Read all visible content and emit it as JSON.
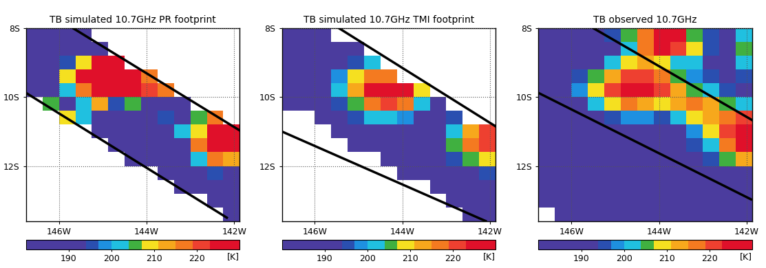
{
  "chart_data": [
    {
      "type": "heatmap",
      "title": "TB simulated 10.7GHz PR footprint",
      "x_edges": [
        -146.75,
        -146.375,
        -146.0,
        -145.625,
        -145.25,
        -144.875,
        -144.5,
        -144.125,
        -143.75,
        -143.375,
        -143.0,
        -142.625,
        -142.25,
        -141.875
      ],
      "y_edges": [
        -8.0,
        -8.4,
        -8.8,
        -9.2,
        -9.6,
        -10.0,
        -10.4,
        -10.8,
        -11.2,
        -11.6,
        -12.0,
        -12.4,
        -12.8,
        -13.2,
        -13.6
      ],
      "values": [
        [
          188,
          188,
          188,
          188,
          null,
          null,
          null,
          null,
          null,
          null,
          null,
          null,
          null
        ],
        [
          188,
          188,
          188,
          188,
          188,
          null,
          null,
          null,
          null,
          null,
          null,
          null,
          null
        ],
        [
          188,
          188,
          195,
          210,
          228,
          226,
          null,
          null,
          null,
          null,
          null,
          null,
          null
        ],
        [
          188,
          188,
          210,
          226,
          228,
          227,
          224,
          215,
          null,
          null,
          null,
          null,
          null
        ],
        [
          188,
          190,
          200,
          215,
          226,
          228,
          224,
          222,
          218,
          null,
          null,
          null,
          null
        ],
        [
          null,
          205,
          188,
          200,
          212,
          195,
          205,
          190,
          188,
          188,
          null,
          null,
          null
        ],
        [
          null,
          null,
          210,
          200,
          188,
          188,
          188,
          188,
          195,
          188,
          205,
          215,
          null
        ],
        [
          null,
          null,
          null,
          null,
          188,
          188,
          188,
          188,
          188,
          200,
          210,
          226,
          228
        ],
        [
          null,
          null,
          null,
          null,
          null,
          188,
          188,
          188,
          188,
          188,
          215,
          225,
          224
        ],
        [
          null,
          null,
          null,
          null,
          null,
          null,
          188,
          188,
          188,
          188,
          200,
          218,
          212
        ],
        [
          null,
          null,
          null,
          null,
          null,
          null,
          null,
          null,
          188,
          188,
          188,
          195,
          188
        ],
        [
          null,
          null,
          null,
          null,
          null,
          null,
          null,
          null,
          null,
          188,
          188,
          188,
          188
        ],
        [
          null,
          null,
          null,
          null,
          null,
          null,
          null,
          null,
          null,
          null,
          null,
          188,
          188
        ],
        [
          null,
          null,
          null,
          null,
          null,
          null,
          null,
          null,
          null,
          null,
          null,
          null,
          188
        ]
      ],
      "swath_lines": [
        [
          [
            -145.68,
            -8.0
          ],
          [
            -141.875,
            -10.97
          ]
        ],
        [
          [
            -146.75,
            -9.88
          ],
          [
            -142.17,
            -13.5
          ]
        ]
      ],
      "xlim": [
        -146.75,
        -141.875
      ],
      "ylim": [
        -13.6,
        -8.0
      ],
      "xticks": [
        {
          "value": -146,
          "label": "146W"
        },
        {
          "value": -144,
          "label": "144W"
        },
        {
          "value": -142,
          "label": "142W"
        }
      ],
      "yticks": [
        {
          "value": -8,
          "label": "8S"
        },
        {
          "value": -10,
          "label": "10S"
        },
        {
          "value": -12,
          "label": "12S"
        }
      ],
      "grid": true,
      "colorbar": {
        "boundaries": [
          180,
          194,
          197,
          200,
          204,
          207,
          211,
          215,
          219,
          223,
          230
        ],
        "colors": [
          "#4b3c9e",
          "#2a4fb0",
          "#1e90e0",
          "#20c0e0",
          "#40b040",
          "#f5e020",
          "#f7a81c",
          "#f47a20",
          "#ee4030",
          "#e0102a"
        ],
        "ticks": [
          190,
          200,
          210,
          220
        ],
        "label": "[K]"
      }
    },
    {
      "type": "heatmap",
      "title": "TB simulated 10.7GHz TMI footprint",
      "x_edges": [
        -146.75,
        -146.375,
        -146.0,
        -145.625,
        -145.25,
        -144.875,
        -144.5,
        -144.125,
        -143.75,
        -143.375,
        -143.0,
        -142.625,
        -142.25,
        -141.875
      ],
      "y_edges": [
        -8.0,
        -8.4,
        -8.8,
        -9.2,
        -9.6,
        -10.0,
        -10.4,
        -10.8,
        -11.2,
        -11.6,
        -12.0,
        -12.4,
        -12.8,
        -13.2,
        -13.6
      ],
      "values": [
        [
          188,
          188,
          188,
          null,
          null,
          null,
          null,
          null,
          null,
          null,
          null,
          null,
          null
        ],
        [
          188,
          188,
          188,
          188,
          188,
          null,
          null,
          null,
          null,
          null,
          null,
          null,
          null
        ],
        [
          188,
          188,
          188,
          190,
          195,
          200,
          null,
          null,
          null,
          null,
          null,
          null,
          null
        ],
        [
          188,
          188,
          190,
          198,
          208,
          215,
          218,
          null,
          null,
          null,
          null,
          null,
          null
        ],
        [
          188,
          188,
          192,
          200,
          212,
          224,
          228,
          226,
          210,
          null,
          null,
          null,
          null
        ],
        [
          188,
          188,
          190,
          196,
          205,
          215,
          220,
          215,
          200,
          192,
          null,
          null,
          null
        ],
        [
          null,
          null,
          188,
          190,
          195,
          200,
          202,
          198,
          192,
          190,
          195,
          null,
          null
        ],
        [
          null,
          null,
          null,
          188,
          188,
          188,
          188,
          188,
          188,
          190,
          200,
          212,
          222
        ],
        [
          null,
          null,
          null,
          null,
          188,
          188,
          188,
          188,
          188,
          192,
          205,
          218,
          220
        ],
        [
          null,
          null,
          null,
          null,
          null,
          null,
          188,
          188,
          188,
          188,
          195,
          205,
          208
        ],
        [
          null,
          null,
          null,
          null,
          null,
          null,
          null,
          188,
          188,
          188,
          188,
          192,
          195
        ],
        [
          null,
          null,
          null,
          null,
          null,
          null,
          null,
          null,
          null,
          188,
          188,
          188,
          188
        ],
        [
          null,
          null,
          null,
          null,
          null,
          null,
          null,
          null,
          null,
          null,
          188,
          188,
          188
        ],
        [
          null,
          null,
          null,
          null,
          null,
          null,
          null,
          null,
          null,
          null,
          null,
          188,
          188
        ]
      ],
      "swath_lines": [
        [
          [
            -145.45,
            -8.0
          ],
          [
            -141.875,
            -10.85
          ]
        ],
        [
          [
            -146.75,
            -11.0
          ],
          [
            -142.1,
            -13.6
          ]
        ]
      ],
      "xlim": [
        -146.75,
        -141.875
      ],
      "ylim": [
        -13.6,
        -8.0
      ],
      "xticks": [
        {
          "value": -146,
          "label": "146W"
        },
        {
          "value": -144,
          "label": "144W"
        },
        {
          "value": -142,
          "label": "142W"
        }
      ],
      "yticks": [
        {
          "value": -8,
          "label": "8S"
        },
        {
          "value": -10,
          "label": "10S"
        },
        {
          "value": -12,
          "label": "12S"
        }
      ],
      "grid": true,
      "colorbar": {
        "boundaries": [
          180,
          194,
          197,
          200,
          204,
          207,
          211,
          215,
          219,
          223,
          230
        ],
        "colors": [
          "#4b3c9e",
          "#2a4fb0",
          "#1e90e0",
          "#20c0e0",
          "#40b040",
          "#f5e020",
          "#f7a81c",
          "#f47a20",
          "#ee4030",
          "#e0102a"
        ],
        "ticks": [
          190,
          200,
          210,
          220
        ],
        "label": "[K]"
      }
    },
    {
      "type": "heatmap",
      "title": "TB observed 10.7GHz",
      "x_edges": [
        -146.75,
        -146.375,
        -146.0,
        -145.625,
        -145.25,
        -144.875,
        -144.5,
        -144.125,
        -143.75,
        -143.375,
        -143.0,
        -142.625,
        -142.25,
        -141.875
      ],
      "y_edges": [
        -8.0,
        -8.4,
        -8.8,
        -9.2,
        -9.6,
        -10.0,
        -10.4,
        -10.8,
        -11.2,
        -11.6,
        -12.0,
        -12.4,
        -12.8,
        -13.2,
        -13.6
      ],
      "values": [
        [
          188,
          188,
          188,
          188,
          195,
          205,
          218,
          226,
          224,
          205,
          195,
          188,
          200
        ],
        [
          188,
          188,
          188,
          188,
          192,
          200,
          215,
          228,
          222,
          210,
          195,
          190,
          205
        ],
        [
          188,
          188,
          188,
          192,
          200,
          208,
          212,
          208,
          200,
          200,
          192,
          190,
          200
        ],
        [
          188,
          188,
          195,
          205,
          212,
          220,
          222,
          215,
          205,
          198,
          195,
          192,
          195
        ],
        [
          188,
          188,
          198,
          210,
          222,
          228,
          226,
          220,
          212,
          205,
          200,
          195,
          192
        ],
        [
          188,
          188,
          192,
          200,
          210,
          215,
          214,
          210,
          212,
          215,
          212,
          205,
          200
        ],
        [
          188,
          188,
          188,
          190,
          195,
          198,
          198,
          195,
          200,
          208,
          212,
          218,
          222
        ],
        [
          188,
          188,
          188,
          188,
          188,
          190,
          190,
          188,
          192,
          198,
          208,
          222,
          228
        ],
        [
          188,
          188,
          188,
          188,
          188,
          188,
          188,
          188,
          188,
          195,
          202,
          215,
          226
        ],
        [
          188,
          188,
          188,
          188,
          188,
          188,
          188,
          188,
          188,
          188,
          195,
          205,
          212
        ],
        [
          188,
          188,
          188,
          188,
          188,
          188,
          188,
          188,
          188,
          188,
          188,
          188,
          188
        ],
        [
          188,
          188,
          188,
          188,
          188,
          188,
          188,
          188,
          188,
          188,
          188,
          188,
          188
        ],
        [
          188,
          188,
          188,
          188,
          188,
          188,
          188,
          188,
          188,
          188,
          188,
          188,
          188
        ],
        [
          null,
          188,
          188,
          188,
          188,
          188,
          188,
          188,
          188,
          188,
          188,
          188,
          188
        ]
      ],
      "swath_lines": [
        [
          [
            -145.5,
            -8.0
          ],
          [
            -141.875,
            -10.67
          ]
        ],
        [
          [
            -146.75,
            -9.88
          ],
          [
            -141.9,
            -12.97
          ]
        ]
      ],
      "xlim": [
        -146.75,
        -141.875
      ],
      "ylim": [
        -13.6,
        -8.0
      ],
      "xticks": [
        {
          "value": -146,
          "label": "146W"
        },
        {
          "value": -144,
          "label": "144W"
        },
        {
          "value": -142,
          "label": "142W"
        }
      ],
      "yticks": [
        {
          "value": -8,
          "label": "8S"
        },
        {
          "value": -10,
          "label": "10S"
        },
        {
          "value": -12,
          "label": "12S"
        }
      ],
      "grid": true,
      "colorbar": {
        "boundaries": [
          180,
          194,
          197,
          200,
          204,
          207,
          211,
          215,
          219,
          223,
          230
        ],
        "colors": [
          "#4b3c9e",
          "#2a4fb0",
          "#1e90e0",
          "#20c0e0",
          "#40b040",
          "#f5e020",
          "#f7a81c",
          "#f47a20",
          "#ee4030",
          "#e0102a"
        ],
        "ticks": [
          190,
          200,
          210,
          220
        ],
        "label": "[K]"
      }
    }
  ]
}
